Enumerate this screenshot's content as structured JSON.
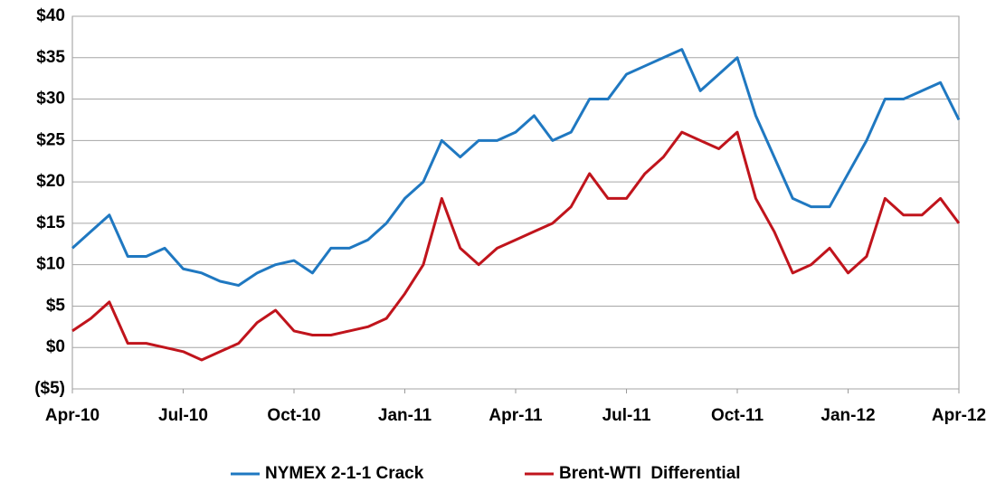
{
  "chart_data": {
    "type": "line",
    "x": [
      0,
      0.5,
      1,
      1.5,
      2,
      2.5,
      3,
      3.5,
      4,
      4.5,
      5,
      5.5,
      6,
      6.5,
      7,
      7.5,
      8,
      8.5,
      9,
      9.5,
      10,
      10.5,
      11,
      11.5,
      12,
      12.5,
      13,
      13.5,
      14,
      14.5,
      15,
      15.5,
      16,
      16.5,
      17,
      17.5,
      18,
      18.5,
      19,
      19.5,
      20,
      20.5,
      21,
      21.5,
      22,
      22.5,
      23,
      23.5,
      24
    ],
    "series": [
      {
        "name": "NYMEX 2-1-1 Crack",
        "color": "#1f78c1",
        "values": [
          12,
          14,
          16,
          11,
          11,
          12,
          9.5,
          9,
          8,
          7.5,
          9,
          10,
          10.5,
          9,
          12,
          12,
          13,
          15,
          18,
          20,
          25,
          23,
          25,
          25,
          26,
          28,
          25,
          26,
          30,
          30,
          33,
          34,
          35,
          36,
          31,
          33,
          35,
          28,
          23,
          18,
          17,
          17,
          21,
          25,
          30,
          30,
          31,
          32,
          27.5
        ]
      },
      {
        "name": "Brent-WTI  Differential",
        "color": "#c0141c",
        "values": [
          2,
          3.5,
          5.5,
          0.5,
          0.5,
          0,
          -0.5,
          -1.5,
          -0.5,
          0.5,
          3,
          4.5,
          2,
          1.5,
          1.5,
          2,
          2.5,
          3.5,
          6.5,
          10,
          18,
          12,
          10,
          12,
          13,
          14,
          15,
          17,
          21,
          18,
          18,
          21,
          23,
          26,
          25,
          24,
          26,
          18,
          14,
          9,
          10,
          12,
          9,
          11,
          18,
          16,
          16,
          18,
          15
        ]
      }
    ],
    "xlim": [
      0,
      24
    ],
    "xticks": [
      {
        "value": 0,
        "label": "Apr-10"
      },
      {
        "value": 3,
        "label": "Jul-10"
      },
      {
        "value": 6,
        "label": "Oct-10"
      },
      {
        "value": 9,
        "label": "Jan-11"
      },
      {
        "value": 12,
        "label": "Apr-11"
      },
      {
        "value": 15,
        "label": "Jul-11"
      },
      {
        "value": 18,
        "label": "Oct-11"
      },
      {
        "value": 21,
        "label": "Jan-12"
      },
      {
        "value": 24,
        "label": "Apr-12"
      }
    ],
    "ylim": [
      -5,
      40
    ],
    "yticks": [
      {
        "value": -5,
        "label": "($5)"
      },
      {
        "value": 0,
        "label": "$0"
      },
      {
        "value": 5,
        "label": "$5"
      },
      {
        "value": 10,
        "label": "$10"
      },
      {
        "value": 15,
        "label": "$15"
      },
      {
        "value": 20,
        "label": "$20"
      },
      {
        "value": 25,
        "label": "$25"
      },
      {
        "value": 30,
        "label": "$30"
      },
      {
        "value": 35,
        "label": "$35"
      },
      {
        "value": 40,
        "label": "$40"
      }
    ],
    "grid": true,
    "legend": "bottom"
  }
}
